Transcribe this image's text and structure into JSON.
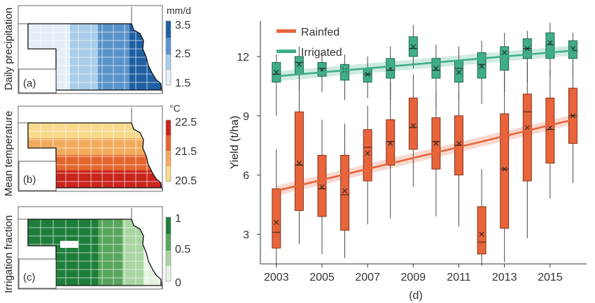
{
  "panels": {
    "a": {
      "label": "(a)",
      "ylabel": "Daily precipitation",
      "unit": "mm/d",
      "ticks": [
        "3.5",
        "2.5",
        "1.5"
      ],
      "colors": [
        "#1f5fa3",
        "#5a93c9",
        "#a9cde8",
        "#e3eef8"
      ],
      "gradient": "west-light-east-dark"
    },
    "b": {
      "label": "(b)",
      "ylabel": "Mean temperature",
      "unit": "°C",
      "ticks": [
        "22.5",
        "21.5",
        "20.5"
      ],
      "colors": [
        "#c9241d",
        "#e4672f",
        "#f2ab5d",
        "#f7da8e"
      ],
      "gradient": "north-light-south-dark"
    },
    "c": {
      "label": "(c)",
      "ylabel": "Irrigation fraction",
      "unit": "",
      "ticks": [
        "1",
        "0.5",
        "0"
      ],
      "colors": [
        "#1e7d3a",
        "#58a55d",
        "#a8d5a0",
        "#e6f3e2"
      ],
      "gradient": "west-dark-east-light"
    }
  },
  "chart_data": {
    "type": "box",
    "panel_label": "(d)",
    "ylabel": "Yield (t/ha)",
    "xlabel": "",
    "x_ticks": [
      "2003",
      "2005",
      "2007",
      "2009",
      "2011",
      "2013",
      "2015"
    ],
    "y_ticks": [
      "3",
      "6",
      "9",
      "12"
    ],
    "ylim": [
      1.5,
      13.8
    ],
    "xlim": [
      2002.3,
      2016.6
    ],
    "legend_position": "top-left",
    "series": [
      {
        "name": "Rainfed",
        "color": "#e8643a",
        "stroke": "#7a2a12",
        "trend": {
          "start": [
            2003,
            5.2
          ],
          "end": [
            2016,
            8.8
          ]
        },
        "boxes": [
          {
            "year": 2003,
            "low": 1.5,
            "q1": 2.3,
            "median": 3.1,
            "q3": 5.3,
            "high": 7.3,
            "mean": 3.6
          },
          {
            "year": 2004,
            "low": 2.5,
            "q1": 4.2,
            "median": 6.5,
            "q3": 9.2,
            "high": 11.2,
            "mean": 6.6
          },
          {
            "year": 2005,
            "low": 2.0,
            "q1": 3.9,
            "median": 5.3,
            "q3": 7.0,
            "high": 8.8,
            "mean": 5.4
          },
          {
            "year": 2006,
            "low": 1.8,
            "q1": 3.2,
            "median": 5.0,
            "q3": 7.0,
            "high": 8.6,
            "mean": 5.2
          },
          {
            "year": 2007,
            "low": 3.5,
            "q1": 5.7,
            "median": 7.4,
            "q3": 8.3,
            "high": 9.5,
            "mean": 7.1
          },
          {
            "year": 2008,
            "low": 3.8,
            "q1": 6.5,
            "median": 7.7,
            "q3": 8.8,
            "high": 10.7,
            "mean": 7.6
          },
          {
            "year": 2009,
            "low": 5.4,
            "q1": 7.3,
            "median": 8.4,
            "q3": 9.9,
            "high": 11.1,
            "mean": 8.5
          },
          {
            "year": 2010,
            "low": 3.9,
            "q1": 6.3,
            "median": 7.7,
            "q3": 8.9,
            "high": 10.2,
            "mean": 7.6
          },
          {
            "year": 2011,
            "low": 3.4,
            "q1": 6.0,
            "median": 7.5,
            "q3": 9.0,
            "high": 10.2,
            "mean": 7.6
          },
          {
            "year": 2012,
            "low": 1.4,
            "q1": 2.0,
            "median": 2.6,
            "q3": 4.4,
            "high": 6.3,
            "mean": 3.0
          },
          {
            "year": 2013,
            "low": 1.6,
            "q1": 3.3,
            "median": 6.3,
            "q3": 9.1,
            "high": 11.2,
            "mean": 6.3
          },
          {
            "year": 2014,
            "low": 2.8,
            "q1": 5.7,
            "median": 9.2,
            "q3": 10.1,
            "high": 11.7,
            "mean": 8.4
          },
          {
            "year": 2015,
            "low": 4.8,
            "q1": 6.6,
            "median": 8.3,
            "q3": 9.9,
            "high": 11.3,
            "mean": 8.4
          },
          {
            "year": 2016,
            "low": 5.6,
            "q1": 7.6,
            "median": 9.0,
            "q3": 10.4,
            "high": 11.6,
            "mean": 9.0
          }
        ]
      },
      {
        "name": "Irrigated",
        "color": "#3fae86",
        "stroke": "#1c5c44",
        "trend": {
          "start": [
            2003,
            11.0
          ],
          "end": [
            2016,
            12.3
          ]
        },
        "boxes": [
          {
            "year": 2003,
            "low": 9.0,
            "q1": 10.7,
            "median": 11.1,
            "q3": 11.7,
            "high": 12.1,
            "mean": 11.2
          },
          {
            "year": 2004,
            "low": 10.3,
            "q1": 11.1,
            "median": 11.7,
            "q3": 12.0,
            "high": 12.5,
            "mean": 11.6
          },
          {
            "year": 2005,
            "low": 10.2,
            "q1": 11.0,
            "median": 11.4,
            "q3": 11.7,
            "high": 12.2,
            "mean": 11.3
          },
          {
            "year": 2006,
            "low": 9.8,
            "q1": 10.8,
            "median": 11.3,
            "q3": 11.6,
            "high": 12.1,
            "mean": 11.3
          },
          {
            "year": 2007,
            "low": 9.9,
            "q1": 10.7,
            "median": 11.1,
            "q3": 11.4,
            "high": 12.0,
            "mean": 11.1
          },
          {
            "year": 2008,
            "low": 9.8,
            "q1": 10.9,
            "median": 11.3,
            "q3": 11.9,
            "high": 12.5,
            "mean": 11.4
          },
          {
            "year": 2009,
            "low": 11.4,
            "q1": 12.0,
            "median": 12.4,
            "q3": 13.0,
            "high": 13.6,
            "mean": 12.5
          },
          {
            "year": 2010,
            "low": 9.4,
            "q1": 10.9,
            "median": 11.3,
            "q3": 11.9,
            "high": 12.6,
            "mean": 11.4
          },
          {
            "year": 2011,
            "low": 9.8,
            "q1": 10.7,
            "median": 11.4,
            "q3": 11.8,
            "high": 12.5,
            "mean": 11.2
          },
          {
            "year": 2012,
            "low": 9.6,
            "q1": 10.9,
            "median": 11.6,
            "q3": 12.2,
            "high": 12.8,
            "mean": 11.5
          },
          {
            "year": 2013,
            "low": 10.2,
            "q1": 11.3,
            "median": 12.0,
            "q3": 12.5,
            "high": 13.2,
            "mean": 12.2
          },
          {
            "year": 2014,
            "low": 10.7,
            "q1": 11.9,
            "median": 12.4,
            "q3": 12.9,
            "high": 13.3,
            "mean": 12.4
          },
          {
            "year": 2015,
            "low": 11.0,
            "q1": 11.9,
            "median": 12.6,
            "q3": 13.2,
            "high": 13.7,
            "mean": 12.7
          },
          {
            "year": 2016,
            "low": 11.0,
            "q1": 11.9,
            "median": 12.3,
            "q3": 12.8,
            "high": 13.2,
            "mean": 12.4
          }
        ]
      }
    ]
  }
}
